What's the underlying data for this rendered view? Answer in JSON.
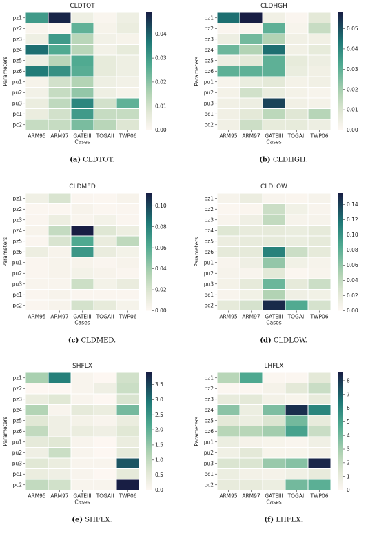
{
  "chart_data": [
    {
      "type": "heatmap",
      "title": "CLDTOT",
      "caption_letter": "(a)",
      "caption_text": "CLDTOT.",
      "xlabel": "Cases",
      "ylabel": "Parameters",
      "x": [
        "ARM95",
        "ARM97",
        "GATEIII",
        "TOGAII",
        "TWP06"
      ],
      "y": [
        "pz1",
        "pz2",
        "pz3",
        "pz4",
        "pz5",
        "pz6",
        "pu1",
        "pu2",
        "pu3",
        "pc1",
        "pc2"
      ],
      "values": [
        [
          0.03,
          0.048,
          0.004,
          0.001,
          0.004
        ],
        [
          0.001,
          0.0,
          0.025,
          0.002,
          0.005
        ],
        [
          0.004,
          0.03,
          0.014,
          0.003,
          0.002
        ],
        [
          0.038,
          0.027,
          0.014,
          0.003,
          0.006
        ],
        [
          0.004,
          0.014,
          0.027,
          0.006,
          0.004
        ],
        [
          0.036,
          0.032,
          0.026,
          0.006,
          0.004
        ],
        [
          0.002,
          0.01,
          0.015,
          0.004,
          0.003
        ],
        [
          0.003,
          0.012,
          0.019,
          0.004,
          0.002
        ],
        [
          0.005,
          0.013,
          0.034,
          0.01,
          0.025
        ],
        [
          0.005,
          0.01,
          0.03,
          0.012,
          0.012
        ],
        [
          0.012,
          0.012,
          0.022,
          0.014,
          0.008
        ]
      ],
      "colorbar": {
        "min": 0,
        "max": 0.049,
        "ticks": [
          0.0,
          0.01,
          0.02,
          0.03,
          0.04
        ],
        "tick_labels": [
          "0.00",
          "0.01",
          "0.02",
          "0.03",
          "0.04"
        ]
      }
    },
    {
      "type": "heatmap",
      "title": "CLDHGH",
      "caption_letter": "(b)",
      "caption_text": "CLDHGH.",
      "xlabel": "Cases",
      "ylabel": "Parameters",
      "x": [
        "ARM95",
        "ARM97",
        "GATEIII",
        "TOGAII",
        "TWP06"
      ],
      "y": [
        "pz1",
        "pz2",
        "pz3",
        "pz4",
        "pz5",
        "pz6",
        "pu1",
        "pu2",
        "pu3",
        "pc1",
        "pc2"
      ],
      "values": [
        [
          0.045,
          0.058,
          0.004,
          0.001,
          0.008
        ],
        [
          0.001,
          0.001,
          0.03,
          0.002,
          0.014
        ],
        [
          0.005,
          0.027,
          0.018,
          0.004,
          0.004
        ],
        [
          0.028,
          0.018,
          0.045,
          0.004,
          0.007
        ],
        [
          0.005,
          0.008,
          0.03,
          0.007,
          0.005
        ],
        [
          0.03,
          0.03,
          0.03,
          0.006,
          0.004
        ],
        [
          0.002,
          0.006,
          0.008,
          0.003,
          0.004
        ],
        [
          0.003,
          0.012,
          0.006,
          0.003,
          0.002
        ],
        [
          0.004,
          0.005,
          0.052,
          0.004,
          0.003
        ],
        [
          0.004,
          0.008,
          0.016,
          0.009,
          0.017
        ],
        [
          0.004,
          0.013,
          0.007,
          0.007,
          0.005
        ]
      ],
      "colorbar": {
        "min": 0,
        "max": 0.058,
        "ticks": [
          0.0,
          0.01,
          0.02,
          0.03,
          0.04,
          0.05
        ],
        "tick_labels": [
          "0.00",
          "0.01",
          "0.02",
          "0.03",
          "0.04",
          "0.05"
        ]
      }
    },
    {
      "type": "heatmap",
      "title": "CLDMED",
      "caption_letter": "(c)",
      "caption_text": "CLDMED.",
      "xlabel": "Cases",
      "ylabel": "Parameters",
      "x": [
        "ARM95",
        "ARM97",
        "GATEIII",
        "TOGAII",
        "TWP06"
      ],
      "y": [
        "pz1",
        "pz2",
        "pz3",
        "pz4",
        "pz5",
        "pz6",
        "pu1",
        "pu2",
        "pu3",
        "pc1",
        "pc2"
      ],
      "values": [
        [
          0.008,
          0.02,
          0.002,
          0.001,
          0.004
        ],
        [
          0.001,
          0.001,
          0.004,
          0.001,
          0.002
        ],
        [
          0.002,
          0.01,
          0.003,
          0.006,
          0.002
        ],
        [
          0.004,
          0.028,
          0.112,
          0.018,
          0.01
        ],
        [
          0.002,
          0.02,
          0.062,
          0.012,
          0.03
        ],
        [
          0.01,
          0.004,
          0.07,
          0.012,
          0.006
        ],
        [
          0.002,
          0.004,
          0.004,
          0.002,
          0.004
        ],
        [
          0.002,
          0.004,
          0.006,
          0.004,
          0.002
        ],
        [
          0.003,
          0.003,
          0.025,
          0.006,
          0.012
        ],
        [
          0.002,
          0.004,
          0.002,
          0.002,
          0.002
        ],
        [
          0.002,
          0.004,
          0.022,
          0.014,
          0.005
        ]
      ],
      "colorbar": {
        "min": 0,
        "max": 0.112,
        "ticks": [
          0.0,
          0.02,
          0.04,
          0.06,
          0.08,
          0.1
        ],
        "tick_labels": [
          "0.00",
          "0.02",
          "0.04",
          "0.06",
          "0.08",
          "0.10"
        ]
      }
    },
    {
      "type": "heatmap",
      "title": "CLDLOW",
      "caption_letter": "(d)",
      "caption_text": "CLDLOW.",
      "xlabel": "Cases",
      "ylabel": "Parameters",
      "x": [
        "ARM95",
        "ARM97",
        "GATEIII",
        "TOGAII",
        "TWP06"
      ],
      "y": [
        "pz1",
        "pz2",
        "pz3",
        "pz4",
        "pz5",
        "pz6",
        "pu1",
        "pu2",
        "pu3",
        "pc1",
        "pc2"
      ],
      "values": [
        [
          0.006,
          0.015,
          0.004,
          0.003,
          0.006
        ],
        [
          0.002,
          0.003,
          0.035,
          0.01,
          0.004
        ],
        [
          0.004,
          0.012,
          0.04,
          0.006,
          0.006
        ],
        [
          0.025,
          0.018,
          0.02,
          0.016,
          0.02
        ],
        [
          0.015,
          0.018,
          0.02,
          0.016,
          0.02
        ],
        [
          0.02,
          0.02,
          0.11,
          0.035,
          0.02
        ],
        [
          0.004,
          0.012,
          0.06,
          0.01,
          0.006
        ],
        [
          0.006,
          0.004,
          0.022,
          0.002,
          0.004
        ],
        [
          0.008,
          0.02,
          0.075,
          0.02,
          0.035
        ],
        [
          0.004,
          0.01,
          0.048,
          0.012,
          0.01
        ],
        [
          0.02,
          0.03,
          0.15,
          0.085,
          0.03
        ]
      ],
      "colorbar": {
        "min": 0,
        "max": 0.155,
        "ticks": [
          0.0,
          0.02,
          0.04,
          0.06,
          0.08,
          0.1,
          0.12,
          0.14
        ],
        "tick_labels": [
          "0.00",
          "0.02",
          "0.04",
          "0.06",
          "0.08",
          "0.10",
          "0.12",
          "0.14"
        ]
      }
    },
    {
      "type": "heatmap",
      "title": "SHFLX",
      "caption_letter": "(e)",
      "caption_text": "SHFLX.",
      "xlabel": "Cases",
      "ylabel": "Parameters",
      "x": [
        "ARM95",
        "ARM97",
        "GATEIII",
        "TOGAII",
        "TWP06"
      ],
      "y": [
        "pz1",
        "pz2",
        "pz3",
        "pz4",
        "pz5",
        "pz6",
        "pu1",
        "pu2",
        "pu3",
        "pc1",
        "pc2"
      ],
      "values": [
        [
          1.3,
          2.8,
          0.1,
          0.0,
          0.8
        ],
        [
          0.0,
          0.0,
          0.1,
          0.3,
          0.9
        ],
        [
          0.4,
          0.6,
          0.1,
          0.0,
          0.7
        ],
        [
          1.2,
          0.1,
          0.5,
          0.4,
          1.8
        ],
        [
          0.6,
          0.3,
          0.2,
          0.1,
          0.4
        ],
        [
          1.0,
          0.3,
          0.4,
          0.3,
          0.6
        ],
        [
          0.5,
          0.6,
          0.1,
          0.0,
          0.4
        ],
        [
          0.3,
          0.9,
          0.1,
          0.0,
          0.5
        ],
        [
          0.6,
          0.4,
          0.1,
          0.1,
          3.3
        ],
        [
          0.4,
          0.3,
          0.1,
          0.0,
          0.5
        ],
        [
          1.0,
          0.8,
          0.1,
          0.1,
          3.9
        ]
      ],
      "colorbar": {
        "min": 0,
        "max": 3.9,
        "ticks": [
          0.0,
          0.5,
          1.0,
          1.5,
          2.0,
          2.5,
          3.0,
          3.5
        ],
        "tick_labels": [
          "0.0",
          "0.5",
          "1.0",
          "1.5",
          "2.0",
          "2.5",
          "3.0",
          "3.5"
        ]
      }
    },
    {
      "type": "heatmap",
      "title": "LHFLX",
      "caption_letter": "(f)",
      "caption_text": "LHFLX.",
      "xlabel": "Cases",
      "ylabel": "Parameters",
      "x": [
        "ARM95",
        "ARM97",
        "GATEIII",
        "TOGAII",
        "TWP06"
      ],
      "y": [
        "pz1",
        "pz2",
        "pz3",
        "pz4",
        "pz5",
        "pz6",
        "pu1",
        "pu2",
        "pu3",
        "pc1",
        "pc2"
      ],
      "values": [
        [
          2.5,
          4.8,
          0.1,
          0.1,
          1.2
        ],
        [
          0.1,
          0.1,
          0.4,
          1.2,
          2.0
        ],
        [
          1.0,
          1.2,
          0.5,
          0.3,
          1.0
        ],
        [
          3.5,
          0.8,
          3.8,
          8.2,
          6.0
        ],
        [
          1.2,
          0.8,
          1.5,
          4.0,
          1.0
        ],
        [
          2.5,
          2.5,
          3.0,
          5.0,
          2.0
        ],
        [
          0.8,
          0.4,
          0.3,
          0.2,
          0.6
        ],
        [
          0.6,
          1.2,
          0.3,
          0.3,
          0.5
        ],
        [
          1.5,
          1.5,
          3.2,
          3.6,
          8.4
        ],
        [
          0.8,
          0.5,
          0.4,
          0.6,
          1.0
        ],
        [
          1.0,
          1.0,
          0.8,
          4.0,
          4.5
        ]
      ],
      "colorbar": {
        "min": 0,
        "max": 8.6,
        "ticks": [
          0,
          1,
          2,
          3,
          4,
          5,
          6,
          7,
          8
        ],
        "tick_labels": [
          "0",
          "1",
          "2",
          "3",
          "4",
          "5",
          "6",
          "7",
          "8"
        ]
      }
    }
  ]
}
